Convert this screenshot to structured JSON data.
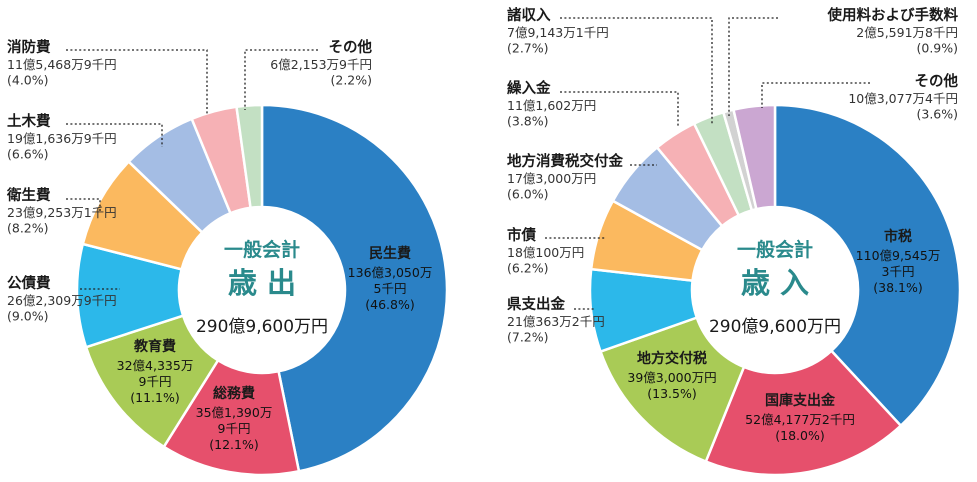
{
  "chart_data": [
    {
      "type": "pie",
      "center_label_top": "一般会計",
      "center_label_main": "歳 出",
      "center_total": "290億9,600万円",
      "slices": [
        {
          "name": "民生費",
          "amount_lines": [
            "136億3,050万",
            "5千円"
          ],
          "pct_text": "(46.8%)",
          "value": 46.8,
          "color": "#2b80c4"
        },
        {
          "name": "総務費",
          "amount_lines": [
            "35億1,390万",
            "9千円"
          ],
          "pct_text": "(12.1%)",
          "value": 12.1,
          "color": "#e6506c"
        },
        {
          "name": "教育費",
          "amount_lines": [
            "32億4,335万",
            "9千円"
          ],
          "pct_text": "(11.1%)",
          "value": 11.1,
          "color": "#a9cb56"
        },
        {
          "name": "公債費",
          "amount_lines": [
            "26億2,309万9千円"
          ],
          "pct_text": "(9.0%)",
          "value": 9.0,
          "color": "#2cb8ea"
        },
        {
          "name": "衛生費",
          "amount_lines": [
            "23億9,253万1千円"
          ],
          "pct_text": "(8.2%)",
          "value": 8.2,
          "color": "#fbb95f"
        },
        {
          "name": "土木費",
          "amount_lines": [
            "19億1,636万9千円"
          ],
          "pct_text": "(6.6%)",
          "value": 6.6,
          "color": "#a4bde4"
        },
        {
          "name": "消防費",
          "amount_lines": [
            "11億5,468万9千円"
          ],
          "pct_text": "(4.0%)",
          "value": 4.0,
          "color": "#f6b1b5"
        },
        {
          "name": "その他",
          "amount_lines": [
            "6億2,153万9千円"
          ],
          "pct_text": "(2.2%)",
          "value": 2.2,
          "color": "#c3e0c3"
        }
      ]
    },
    {
      "type": "pie",
      "center_label_top": "一般会計",
      "center_label_main": "歳 入",
      "center_total": "290億9,600万円",
      "slices": [
        {
          "name": "市税",
          "amount_lines": [
            "110億9,545万",
            "3千円"
          ],
          "pct_text": "(38.1%)",
          "value": 38.1,
          "color": "#2b80c4"
        },
        {
          "name": "国庫支出金",
          "amount_lines": [
            "52億4,177万2千円"
          ],
          "pct_text": "(18.0%)",
          "value": 18.0,
          "color": "#e6506c"
        },
        {
          "name": "地方交付税",
          "amount_lines": [
            "39億3,000万円"
          ],
          "pct_text": "(13.5%)",
          "value": 13.5,
          "color": "#a9cb56"
        },
        {
          "name": "県支出金",
          "amount_lines": [
            "21億363万2千円"
          ],
          "pct_text": "(7.2%)",
          "value": 7.2,
          "color": "#2cb8ea"
        },
        {
          "name": "市債",
          "amount_lines": [
            "18億100万円"
          ],
          "pct_text": "(6.2%)",
          "value": 6.2,
          "color": "#fbb95f"
        },
        {
          "name": "地方消費税交付金",
          "amount_lines": [
            "17億3,000万円"
          ],
          "pct_text": "(6.0%)",
          "value": 6.0,
          "color": "#a4bde4"
        },
        {
          "name": "繰入金",
          "amount_lines": [
            "11億1,602万円"
          ],
          "pct_text": "(3.8%)",
          "value": 3.8,
          "color": "#f6b1b5"
        },
        {
          "name": "諸収入",
          "amount_lines": [
            "7億9,143万1千円"
          ],
          "pct_text": "(2.7%)",
          "value": 2.7,
          "color": "#c3e0c3"
        },
        {
          "name": "使用料および手数料",
          "amount_lines": [
            "2億5,591万8千円"
          ],
          "pct_text": "(0.9%)",
          "value": 0.9,
          "color": "#d2d2d2"
        },
        {
          "name": "その他",
          "amount_lines": [
            "10億3,077万4千円"
          ],
          "pct_text": "(3.6%)",
          "value": 3.6,
          "color": "#cba7d2"
        }
      ]
    }
  ]
}
